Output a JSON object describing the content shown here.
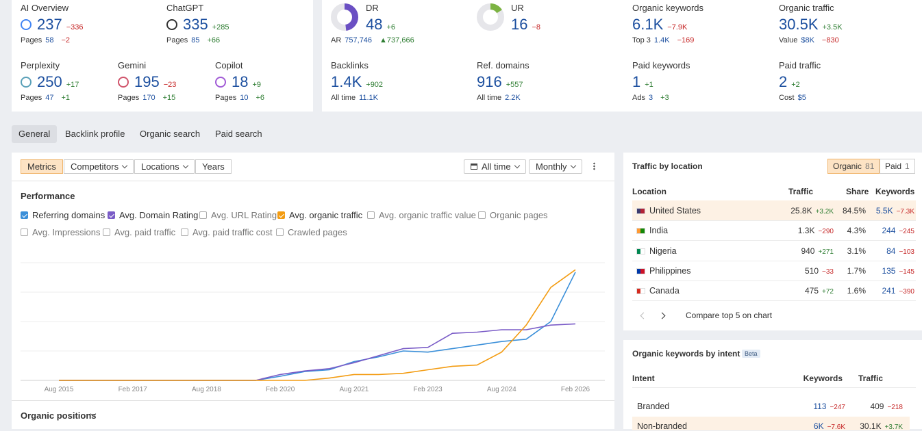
{
  "ai_metrics": [
    {
      "label": "AI Overview",
      "value": 237,
      "delta": "−336",
      "sub_label": "Pages",
      "sub_value": 58,
      "sub_delta": "−2"
    },
    {
      "label": "ChatGPT",
      "value": 335,
      "delta": "+285",
      "sub_label": "Pages",
      "sub_value": 85,
      "sub_delta": "+66"
    },
    {
      "label": "Perplexity",
      "value": 250,
      "delta": "+17",
      "sub_label": "Pages",
      "sub_value": 47,
      "sub_delta": "+1"
    },
    {
      "label": "Gemini",
      "value": 195,
      "delta": "−23",
      "sub_label": "Pages",
      "sub_value": 170,
      "sub_delta": "+15"
    },
    {
      "label": "Copilot",
      "value": 18,
      "delta": "+9",
      "sub_label": "Pages",
      "sub_value": 10,
      "sub_delta": "+6"
    }
  ],
  "site_metrics": [
    {
      "label": "DR",
      "value": 48,
      "delta": "+6",
      "sub_label": "AR",
      "sub_value": "757,746",
      "sub_delta": "▲737,666"
    },
    {
      "label": "UR",
      "value": 16,
      "delta": "−8"
    },
    {
      "label": "Backlinks",
      "value": "1.4K",
      "delta": "+902",
      "sub_label": "All time",
      "sub_value": "11.1K"
    },
    {
      "label": "Ref. domains",
      "value": 916,
      "delta": "+557",
      "sub_label": "All time",
      "sub_value": "2.2K"
    },
    {
      "label": "Organic keywords",
      "value": "6.1K",
      "delta": "−7.9K",
      "sub_label": "Top 3",
      "sub_value": "1.4K",
      "sub_delta": "−169"
    },
    {
      "label": "Organic traffic",
      "value": "30.5K",
      "delta": "+3.5K",
      "sub_label": "Value",
      "sub_value": "$8K",
      "sub_delta": "−830"
    },
    {
      "label": "Paid keywords",
      "value": 1,
      "delta": "+1",
      "sub_label": "Ads",
      "sub_value": 3,
      "sub_delta": "+3"
    },
    {
      "label": "Paid traffic",
      "value": 2,
      "delta": "+2",
      "sub_label": "Cost",
      "sub_value": "$5"
    }
  ],
  "tabs": [
    "General",
    "Backlink profile",
    "Organic search",
    "Paid search"
  ],
  "toolbar": {
    "left": [
      "Metrics",
      "Competitors",
      "Locations",
      "Years"
    ],
    "right": [
      "All time",
      "Monthly"
    ]
  },
  "performance": {
    "title": "Performance",
    "options": [
      {
        "label": "Referring domains",
        "checked": true,
        "color": "#3a8fd9"
      },
      {
        "label": "Avg. Domain Rating",
        "checked": true,
        "color": "#7a5cc7"
      },
      {
        "label": "Avg. URL Rating",
        "checked": false
      },
      {
        "label": "Avg. organic traffic",
        "checked": true,
        "color": "#f39c12"
      },
      {
        "label": "Avg. organic traffic value",
        "checked": false
      },
      {
        "label": "Organic pages",
        "checked": false
      },
      {
        "label": "Avg. Impressions",
        "checked": false
      },
      {
        "label": "Avg. paid traffic",
        "checked": false
      },
      {
        "label": "Avg. paid traffic cost",
        "checked": false
      },
      {
        "label": "Crawled pages",
        "checked": false
      }
    ]
  },
  "chart_data": {
    "type": "line",
    "categories": [
      "Aug 2015",
      null,
      null,
      "Feb 2017",
      null,
      null,
      "Aug 2018",
      null,
      null,
      "Feb 2020",
      null,
      null,
      "Aug 2021",
      null,
      null,
      "Feb 2023",
      null,
      null,
      "Aug 2024",
      null,
      null,
      "Feb 2026"
    ],
    "series": [
      {
        "name": "Referring domains",
        "color": "#3a8fd9",
        "values": [
          0,
          0,
          0,
          0,
          0,
          0,
          0,
          0,
          0,
          3.5,
          7.5,
          9,
          16,
          20,
          25,
          24,
          27,
          30,
          33,
          35,
          50,
          92
        ]
      },
      {
        "name": "Avg. Domain Rating",
        "color": "#7a5cc7",
        "values": [
          0,
          0,
          0,
          0,
          0,
          0,
          0,
          0,
          0,
          5,
          8,
          10,
          15,
          21,
          27,
          28,
          40,
          41,
          43,
          43,
          47,
          48
        ]
      },
      {
        "name": "Avg. organic traffic",
        "color": "#f39c12",
        "values": [
          0,
          0,
          0,
          0,
          0,
          0,
          0,
          0,
          0,
          0,
          0,
          2,
          5,
          5,
          6,
          9,
          12,
          13,
          24,
          47,
          79,
          94
        ]
      }
    ],
    "ylim": [
      0,
      100
    ],
    "yticks": [
      0,
      25,
      50,
      75,
      100
    ],
    "grid": true
  },
  "organic_positions": "Organic positions",
  "traffic_by_location": {
    "title": "Traffic by location",
    "toggle": [
      {
        "label": "Organic",
        "count": 81
      },
      {
        "label": "Paid",
        "count": 1
      }
    ],
    "columns": [
      "Location",
      "Traffic",
      "Share",
      "Keywords"
    ],
    "rows": [
      {
        "country": "United States",
        "traffic": "25.8K",
        "traffic_delta": "+3.2K",
        "share": "84.5%",
        "keywords": "5.5K",
        "keywords_delta": "−7.3K"
      },
      {
        "country": "India",
        "traffic": "1.3K",
        "traffic_delta": "−290",
        "share": "4.3%",
        "keywords": 244,
        "keywords_delta": "−245"
      },
      {
        "country": "Nigeria",
        "traffic": 940,
        "traffic_delta": "+271",
        "share": "3.1%",
        "keywords": 84,
        "keywords_delta": "−103"
      },
      {
        "country": "Philippines",
        "traffic": 510,
        "traffic_delta": "−33",
        "share": "1.7%",
        "keywords": 135,
        "keywords_delta": "−145"
      },
      {
        "country": "Canada",
        "traffic": 475,
        "traffic_delta": "+72",
        "share": "1.6%",
        "keywords": 241,
        "keywords_delta": "−390"
      }
    ],
    "footer": "Compare top 5 on chart"
  },
  "intent": {
    "title": "Organic keywords by intent",
    "badge": "Beta",
    "columns": [
      "Intent",
      "Keywords",
      "Traffic"
    ],
    "rows": [
      {
        "intent": "Branded",
        "keywords": 113,
        "keywords_delta": "−247",
        "traffic": 409,
        "traffic_delta": "−218"
      },
      {
        "intent": "Non-branded",
        "keywords": "6K",
        "keywords_delta": "−7.6K",
        "traffic": "30.1K",
        "traffic_delta": "+3.7K"
      }
    ]
  }
}
